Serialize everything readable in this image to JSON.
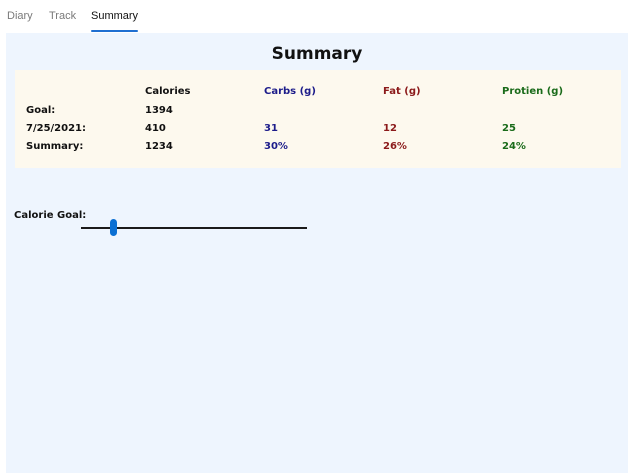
{
  "tabs": [
    {
      "label": "Diary",
      "active": false
    },
    {
      "label": "Track",
      "active": false
    },
    {
      "label": "Summary",
      "active": true
    }
  ],
  "summary": {
    "title": "Summary",
    "headers": {
      "calories": "Calories",
      "carbs": "Carbs (g)",
      "fat": "Fat (g)",
      "protein": "Protien (g)"
    },
    "rows": [
      {
        "label": "Goal:",
        "calories": "1394",
        "carbs": "",
        "fat": "",
        "protein": ""
      },
      {
        "label": "7/25/2021:",
        "calories": "410",
        "carbs": "31",
        "fat": "12",
        "protein": "25"
      },
      {
        "label": "Summary:",
        "calories": "1234",
        "carbs": "30%",
        "fat": "26%",
        "protein": "24%"
      }
    ]
  },
  "calorie_goal": {
    "label": "Calorie Goal:",
    "slider_fraction": 0.14
  },
  "colors": {
    "carbs": "#1c1c8a",
    "fat": "#8b1a1a",
    "protein": "#1a6b1a",
    "accent": "#1f6fd1",
    "panel_bg": "#eef5fe",
    "card_bg": "#fdf9ee"
  }
}
